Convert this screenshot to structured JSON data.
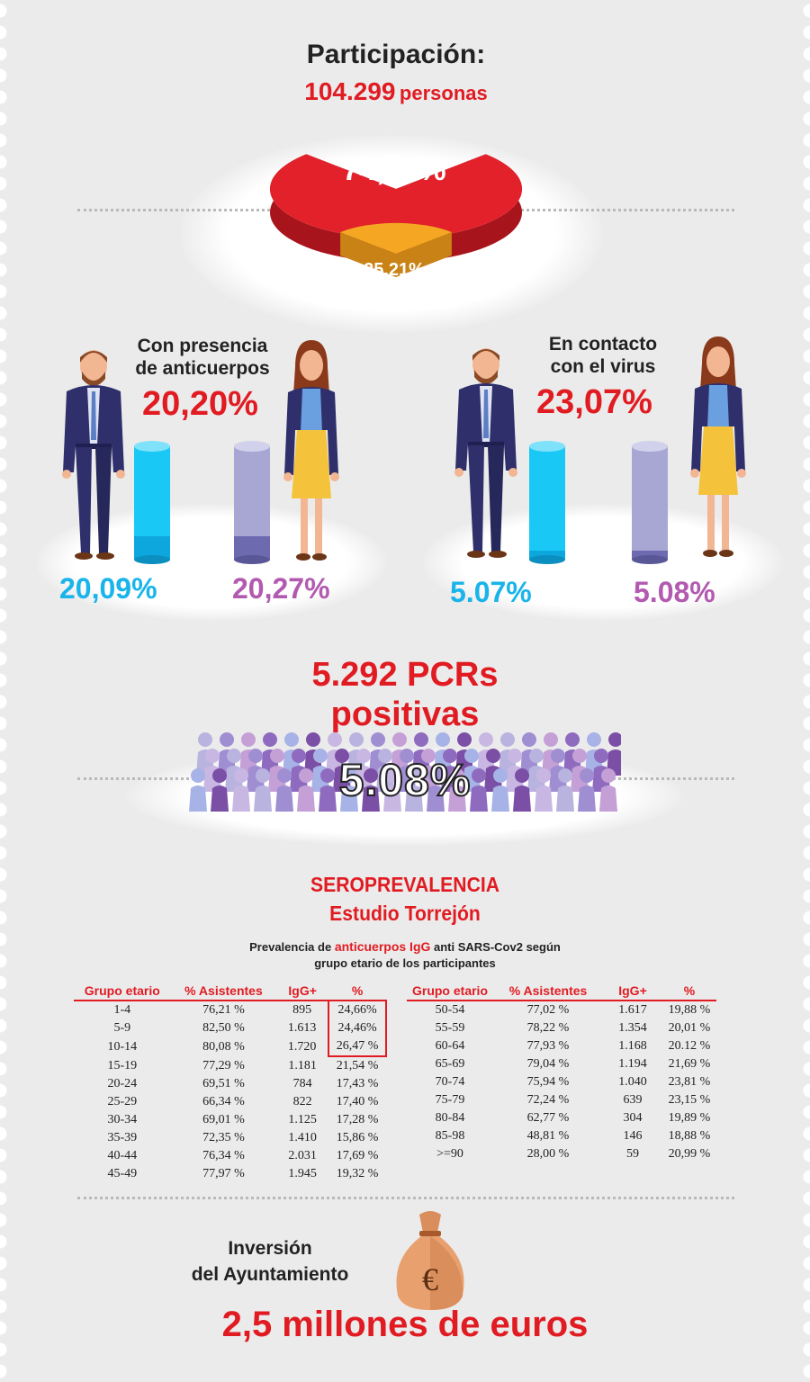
{
  "participation": {
    "title": "Participación:",
    "count": "104.299",
    "unit": "personas"
  },
  "chart_data": {
    "type": "pie",
    "categories": [
      "74,79%",
      "25,21%"
    ],
    "values": [
      74.79,
      25.21
    ],
    "colors": [
      "#e2212b",
      "#f5a623"
    ]
  },
  "antibodies": {
    "title_line1": "Con presencia",
    "title_line2": "de anticuerpos",
    "total": "20,20%",
    "men": "20,09%",
    "women": "20,27%",
    "men_value": 20.09,
    "women_value": 20.27
  },
  "contact": {
    "title_line1": "En contacto",
    "title_line2": "con el virus",
    "total": "23,07%",
    "men": "5.07%",
    "women": "5.08%",
    "men_value": 5.07,
    "women_value": 5.08
  },
  "pcr": {
    "line1": "5.292 PCRs",
    "line2": "positivas",
    "pct": "5.08%"
  },
  "sero": {
    "title": "SEROPREVALENCIA",
    "subtitle": "Estudio Torrejón",
    "desc_prefix": "Prevalencia de ",
    "desc_highlight": "anticuerpos IgG",
    "desc_suffix": " anti SARS-Cov2 según",
    "desc_line2": "grupo etario de los participantes",
    "headers": [
      "Grupo etario",
      "% Asistentes",
      "IgG+",
      "%"
    ],
    "left_rows": [
      [
        "1-4",
        "76,21 %",
        "895",
        "24,66%"
      ],
      [
        "5-9",
        "82,50 %",
        "1.613",
        "24,46%"
      ],
      [
        "10-14",
        "80,08 %",
        "1.720",
        "26,47 %"
      ],
      [
        "15-19",
        "77,29 %",
        "1.181",
        "21,54 %"
      ],
      [
        "20-24",
        "69,51 %",
        "784",
        "17,43 %"
      ],
      [
        "25-29",
        "66,34 %",
        "822",
        "17,40 %"
      ],
      [
        "30-34",
        "69,01 %",
        "1.125",
        "17,28 %"
      ],
      [
        "35-39",
        "72,35 %",
        "1.410",
        "15,86 %"
      ],
      [
        "40-44",
        "76,34 %",
        "2.031",
        "17,69 %"
      ],
      [
        "45-49",
        "77,97 %",
        "1.945",
        "19,32 %"
      ]
    ],
    "right_rows": [
      [
        "50-54",
        "77,02 %",
        "1.617",
        "19,88 %"
      ],
      [
        "55-59",
        "78,22 %",
        "1.354",
        "20,01 %"
      ],
      [
        "60-64",
        "77,93 %",
        "1.168",
        "20.12 %"
      ],
      [
        "65-69",
        "79,04 %",
        "1.194",
        "21,69 %"
      ],
      [
        "70-74",
        "75,94 %",
        "1.040",
        "23,81 %"
      ],
      [
        "75-79",
        "72,24 %",
        "639",
        "23,15 %"
      ],
      [
        "80-84",
        "62,77 %",
        "304",
        "19,89 %"
      ],
      [
        "85-98",
        "48,81 %",
        "146",
        "18,88 %"
      ],
      [
        ">=90",
        "28,00 %",
        "59",
        "20,99 %"
      ]
    ]
  },
  "investment": {
    "line1": "Inversión",
    "line2": "del Ayuntamiento",
    "amount": "2,5 millones de euros",
    "symbol": "€"
  },
  "colors": {
    "red": "#e11b22",
    "blue": "#19b4ea",
    "purple": "#b259b0",
    "orange": "#f5a623",
    "dark": "#222222"
  },
  "icons": [
    "man-figure-icon",
    "woman-figure-icon",
    "crowd-icon",
    "money-bag-icon"
  ]
}
